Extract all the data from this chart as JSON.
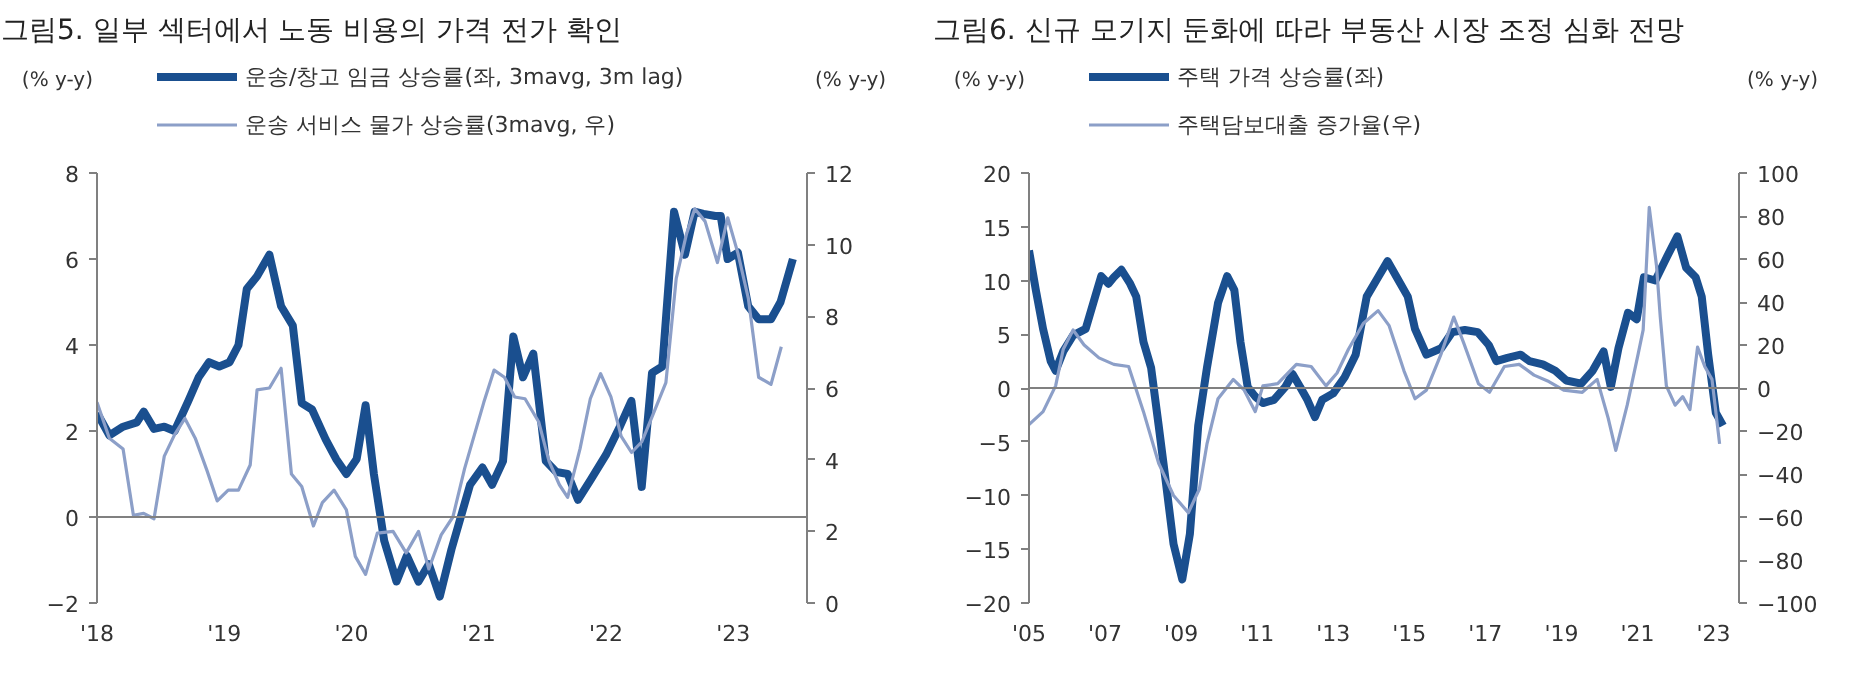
{
  "chart_data": [
    {
      "type": "line",
      "title": "그림5. 일부 섹터에서 노동 비용의 가격 전가 확인",
      "ylabel": "(% y-y)",
      "y2label": "(% y-y)",
      "xlim": [
        2018,
        2023.58
      ],
      "xticks": [
        {
          "value": 2018,
          "label": "'18"
        },
        {
          "value": 2019,
          "label": "'19"
        },
        {
          "value": 2020,
          "label": "'20"
        },
        {
          "value": 2021,
          "label": "'21"
        },
        {
          "value": 2022,
          "label": "'22"
        },
        {
          "value": 2023,
          "label": "'23"
        }
      ],
      "ylim": [
        -2,
        8
      ],
      "yticks": [
        -2,
        0,
        2,
        4,
        6,
        8
      ],
      "y2lim": [
        0,
        12
      ],
      "y2ticks": [
        0,
        2,
        4,
        6,
        8,
        10,
        12
      ],
      "grid": false,
      "legend": "top",
      "ref_lines": [
        {
          "axis": "y",
          "value": 0,
          "color": "#808080"
        }
      ],
      "series": [
        {
          "name": "운송/창고 임금 상승률(좌, 3mavg, 3m lag)",
          "color": "#1a4f8f",
          "x": [
            2018.0,
            2018.097,
            2018.205,
            2018.313,
            2018.367,
            2018.448,
            2018.529,
            2018.61,
            2018.718,
            2018.799,
            2018.88,
            2018.961,
            2019.042,
            2019.112,
            2019.177,
            2019.258,
            2019.355,
            2019.447,
            2019.539,
            2019.609,
            2019.69,
            2019.798,
            2019.879,
            2019.96,
            2020.041,
            2020.111,
            2020.176,
            2020.257,
            2020.354,
            2020.435,
            2020.527,
            2020.608,
            2020.694,
            2020.786,
            2020.932,
            2021.029,
            2021.105,
            2021.191,
            2021.272,
            2021.348,
            2021.429,
            2021.527,
            2021.608,
            2021.699,
            2021.78,
            2021.877,
            2022.001,
            2022.109,
            2022.2,
            2022.281,
            2022.362,
            2022.443,
            2022.535,
            2022.621,
            2022.697,
            2022.767,
            2022.859,
            2022.902,
            2022.956,
            2023.037,
            2023.118,
            2023.2,
            2023.297,
            2023.372,
            2023.469
          ],
          "values": [
            2.42,
            1.9,
            2.1,
            2.2,
            2.45,
            2.05,
            2.1,
            2.0,
            2.7,
            3.25,
            3.6,
            3.5,
            3.6,
            4.0,
            5.3,
            5.6,
            6.1,
            4.9,
            4.45,
            2.65,
            2.5,
            1.8,
            1.35,
            1.0,
            1.35,
            2.6,
            1.0,
            -0.55,
            -1.5,
            -0.9,
            -1.5,
            -1.1,
            -1.85,
            -0.75,
            0.75,
            1.15,
            0.75,
            1.3,
            4.2,
            3.25,
            3.8,
            1.3,
            1.05,
            1.0,
            0.4,
            0.85,
            1.45,
            2.1,
            2.7,
            0.7,
            3.35,
            3.5,
            7.1,
            6.1,
            7.1,
            7.05,
            7.0,
            7.0,
            6.0,
            6.15,
            4.9,
            4.6,
            4.6,
            5.0,
            6.0
          ]
        },
        {
          "name": "운송 서비스 물가 상승률(3mavg, 우)",
          "color": "#8c9fc8",
          "axis": "y2",
          "x": [
            2018.0,
            2018.097,
            2018.205,
            2018.286,
            2018.367,
            2018.448,
            2018.529,
            2018.61,
            2018.691,
            2018.772,
            2018.864,
            2018.945,
            2019.031,
            2019.112,
            2019.204,
            2019.258,
            2019.355,
            2019.447,
            2019.528,
            2019.609,
            2019.701,
            2019.771,
            2019.863,
            2019.96,
            2020.03,
            2020.111,
            2020.203,
            2020.327,
            2020.43,
            2020.527,
            2020.608,
            2020.705,
            2020.797,
            2020.889,
            2021.04,
            2021.121,
            2021.202,
            2021.283,
            2021.364,
            2021.472,
            2021.553,
            2021.634,
            2021.699,
            2021.796,
            2021.877,
            2021.958,
            2022.039,
            2022.12,
            2022.201,
            2022.282,
            2022.363,
            2022.471,
            2022.552,
            2022.633,
            2022.698,
            2022.779,
            2022.876,
            2022.957,
            2023.038,
            2023.119,
            2023.2,
            2023.297,
            2023.378
          ],
          "values": [
            5.6,
            4.6,
            4.3,
            2.45,
            2.5,
            2.35,
            4.1,
            4.7,
            5.15,
            4.6,
            3.7,
            2.85,
            3.15,
            3.15,
            3.85,
            5.95,
            6.0,
            6.55,
            3.6,
            3.25,
            2.15,
            2.8,
            3.15,
            2.6,
            1.3,
            0.8,
            1.95,
            2.0,
            1.4,
            2.0,
            0.95,
            1.9,
            2.4,
            3.75,
            5.6,
            6.5,
            6.3,
            5.75,
            5.7,
            5.05,
            3.95,
            3.3,
            2.95,
            4.3,
            5.7,
            6.4,
            5.75,
            4.65,
            4.2,
            4.5,
            5.2,
            6.15,
            9.05,
            10.3,
            11.0,
            10.65,
            9.5,
            10.75,
            9.75,
            8.5,
            6.3,
            6.1,
            7.15
          ]
        }
      ]
    },
    {
      "type": "line",
      "title": "그림6. 신규 모기지 둔화에 따라 부동산 시장 조정 심화 전망",
      "ylabel": "(% y-y)",
      "y2label": "(% y-y)",
      "xlim": [
        2005,
        2023.67
      ],
      "xticks": [
        {
          "value": 2005,
          "label": "'05"
        },
        {
          "value": 2007,
          "label": "'07"
        },
        {
          "value": 2009,
          "label": "'09"
        },
        {
          "value": 2011,
          "label": "'11"
        },
        {
          "value": 2013,
          "label": "'13"
        },
        {
          "value": 2015,
          "label": "'15"
        },
        {
          "value": 2017,
          "label": "'17"
        },
        {
          "value": 2019,
          "label": "'19"
        },
        {
          "value": 2021,
          "label": "'21"
        },
        {
          "value": 2023,
          "label": "'23"
        }
      ],
      "ylim": [
        -20,
        20
      ],
      "yticks": [
        -20,
        -15,
        -10,
        -5,
        0,
        5,
        10,
        15,
        20
      ],
      "y2lim": [
        -100,
        100
      ],
      "y2ticks": [
        -100,
        -80,
        -60,
        -40,
        -20,
        0,
        20,
        40,
        60,
        80,
        100
      ],
      "grid": false,
      "legend": "top",
      "ref_lines": [
        {
          "axis": "y",
          "value": 0,
          "color": "#808080"
        }
      ],
      "series": [
        {
          "name": "주택 가격 상승률(좌)",
          "color": "#1a4f8f",
          "x": [
            2005.0,
            2005.18,
            2005.37,
            2005.57,
            2005.7,
            2005.9,
            2006.16,
            2006.49,
            2006.74,
            2006.9,
            2007.09,
            2007.23,
            2007.43,
            2007.66,
            2007.82,
            2008.01,
            2008.21,
            2008.41,
            2008.6,
            2008.8,
            2009.03,
            2009.23,
            2009.45,
            2009.68,
            2009.97,
            2010.21,
            2010.4,
            2010.56,
            2010.75,
            2010.95,
            2011.15,
            2011.44,
            2011.74,
            2011.93,
            2012.13,
            2012.32,
            2012.52,
            2012.71,
            2013.0,
            2013.3,
            2013.59,
            2013.88,
            2014.18,
            2014.43,
            2014.67,
            2014.96,
            2015.15,
            2015.45,
            2015.84,
            2016.13,
            2016.46,
            2016.8,
            2017.09,
            2017.29,
            2017.58,
            2017.93,
            2018.16,
            2018.51,
            2018.84,
            2019.13,
            2019.52,
            2019.82,
            2020.11,
            2020.3,
            2020.5,
            2020.75,
            2020.98,
            2021.17,
            2021.47,
            2021.76,
            2022.05,
            2022.28,
            2022.53,
            2022.69,
            2022.86,
            2023.06,
            2023.25
          ],
          "values": [
            12.8,
            9.1,
            5.5,
            2.5,
            1.6,
            3.4,
            4.9,
            5.5,
            8.5,
            10.4,
            9.7,
            10.3,
            11.0,
            9.7,
            8.5,
            4.3,
            1.9,
            -3.5,
            -8.8,
            -14.5,
            -17.8,
            -13.6,
            -3.5,
            1.9,
            7.9,
            10.4,
            9.1,
            4.3,
            0.1,
            -0.8,
            -1.4,
            -1.1,
            0.1,
            1.3,
            0.1,
            -1.1,
            -2.7,
            -1.1,
            -0.5,
            1.0,
            3.1,
            8.5,
            10.3,
            11.8,
            10.3,
            8.5,
            5.5,
            3.1,
            3.7,
            5.2,
            5.4,
            5.2,
            4.0,
            2.5,
            2.8,
            3.1,
            2.5,
            2.2,
            1.6,
            0.7,
            0.4,
            1.6,
            3.4,
            0.1,
            3.7,
            7.0,
            6.4,
            10.3,
            10.0,
            12.1,
            14.1,
            11.2,
            10.3,
            8.5,
            3.1,
            -2.3,
            -3.5
          ]
        },
        {
          "name": "주택담보대출 증가율(우)",
          "color": "#8c9fc8",
          "axis": "y2",
          "x": [
            2005.0,
            2005.37,
            2005.7,
            2005.9,
            2006.16,
            2006.45,
            2006.84,
            2007.23,
            2007.62,
            2008.01,
            2008.41,
            2008.8,
            2009.19,
            2009.48,
            2009.68,
            2009.97,
            2010.37,
            2010.66,
            2010.95,
            2011.15,
            2011.54,
            2012.03,
            2012.42,
            2012.81,
            2013.1,
            2013.4,
            2013.79,
            2014.18,
            2014.47,
            2014.86,
            2015.15,
            2015.45,
            2015.84,
            2016.17,
            2016.43,
            2016.82,
            2017.11,
            2017.5,
            2017.89,
            2018.28,
            2018.67,
            2019.06,
            2019.55,
            2019.94,
            2020.23,
            2020.43,
            2020.73,
            2021.02,
            2021.15,
            2021.31,
            2021.5,
            2021.6,
            2021.76,
            2021.99,
            2022.19,
            2022.38,
            2022.58,
            2022.77,
            2022.96,
            2023.16
          ],
          "values": [
            -17,
            -11,
            1,
            18,
            27,
            20,
            14,
            11,
            10,
            -11,
            -35,
            -50,
            -58,
            -47,
            -26,
            -5,
            4,
            -1,
            -11,
            1,
            2,
            11,
            10,
            1,
            7,
            18,
            30,
            36,
            29,
            8,
            -5,
            -1,
            16,
            33,
            21,
            2,
            -2,
            10,
            11,
            6,
            3,
            -1,
            -2,
            4,
            -14,
            -29,
            -8,
            16,
            27,
            84,
            57,
            33,
            1,
            -8,
            -4,
            -10,
            19,
            10,
            4,
            -26
          ]
        }
      ]
    }
  ]
}
